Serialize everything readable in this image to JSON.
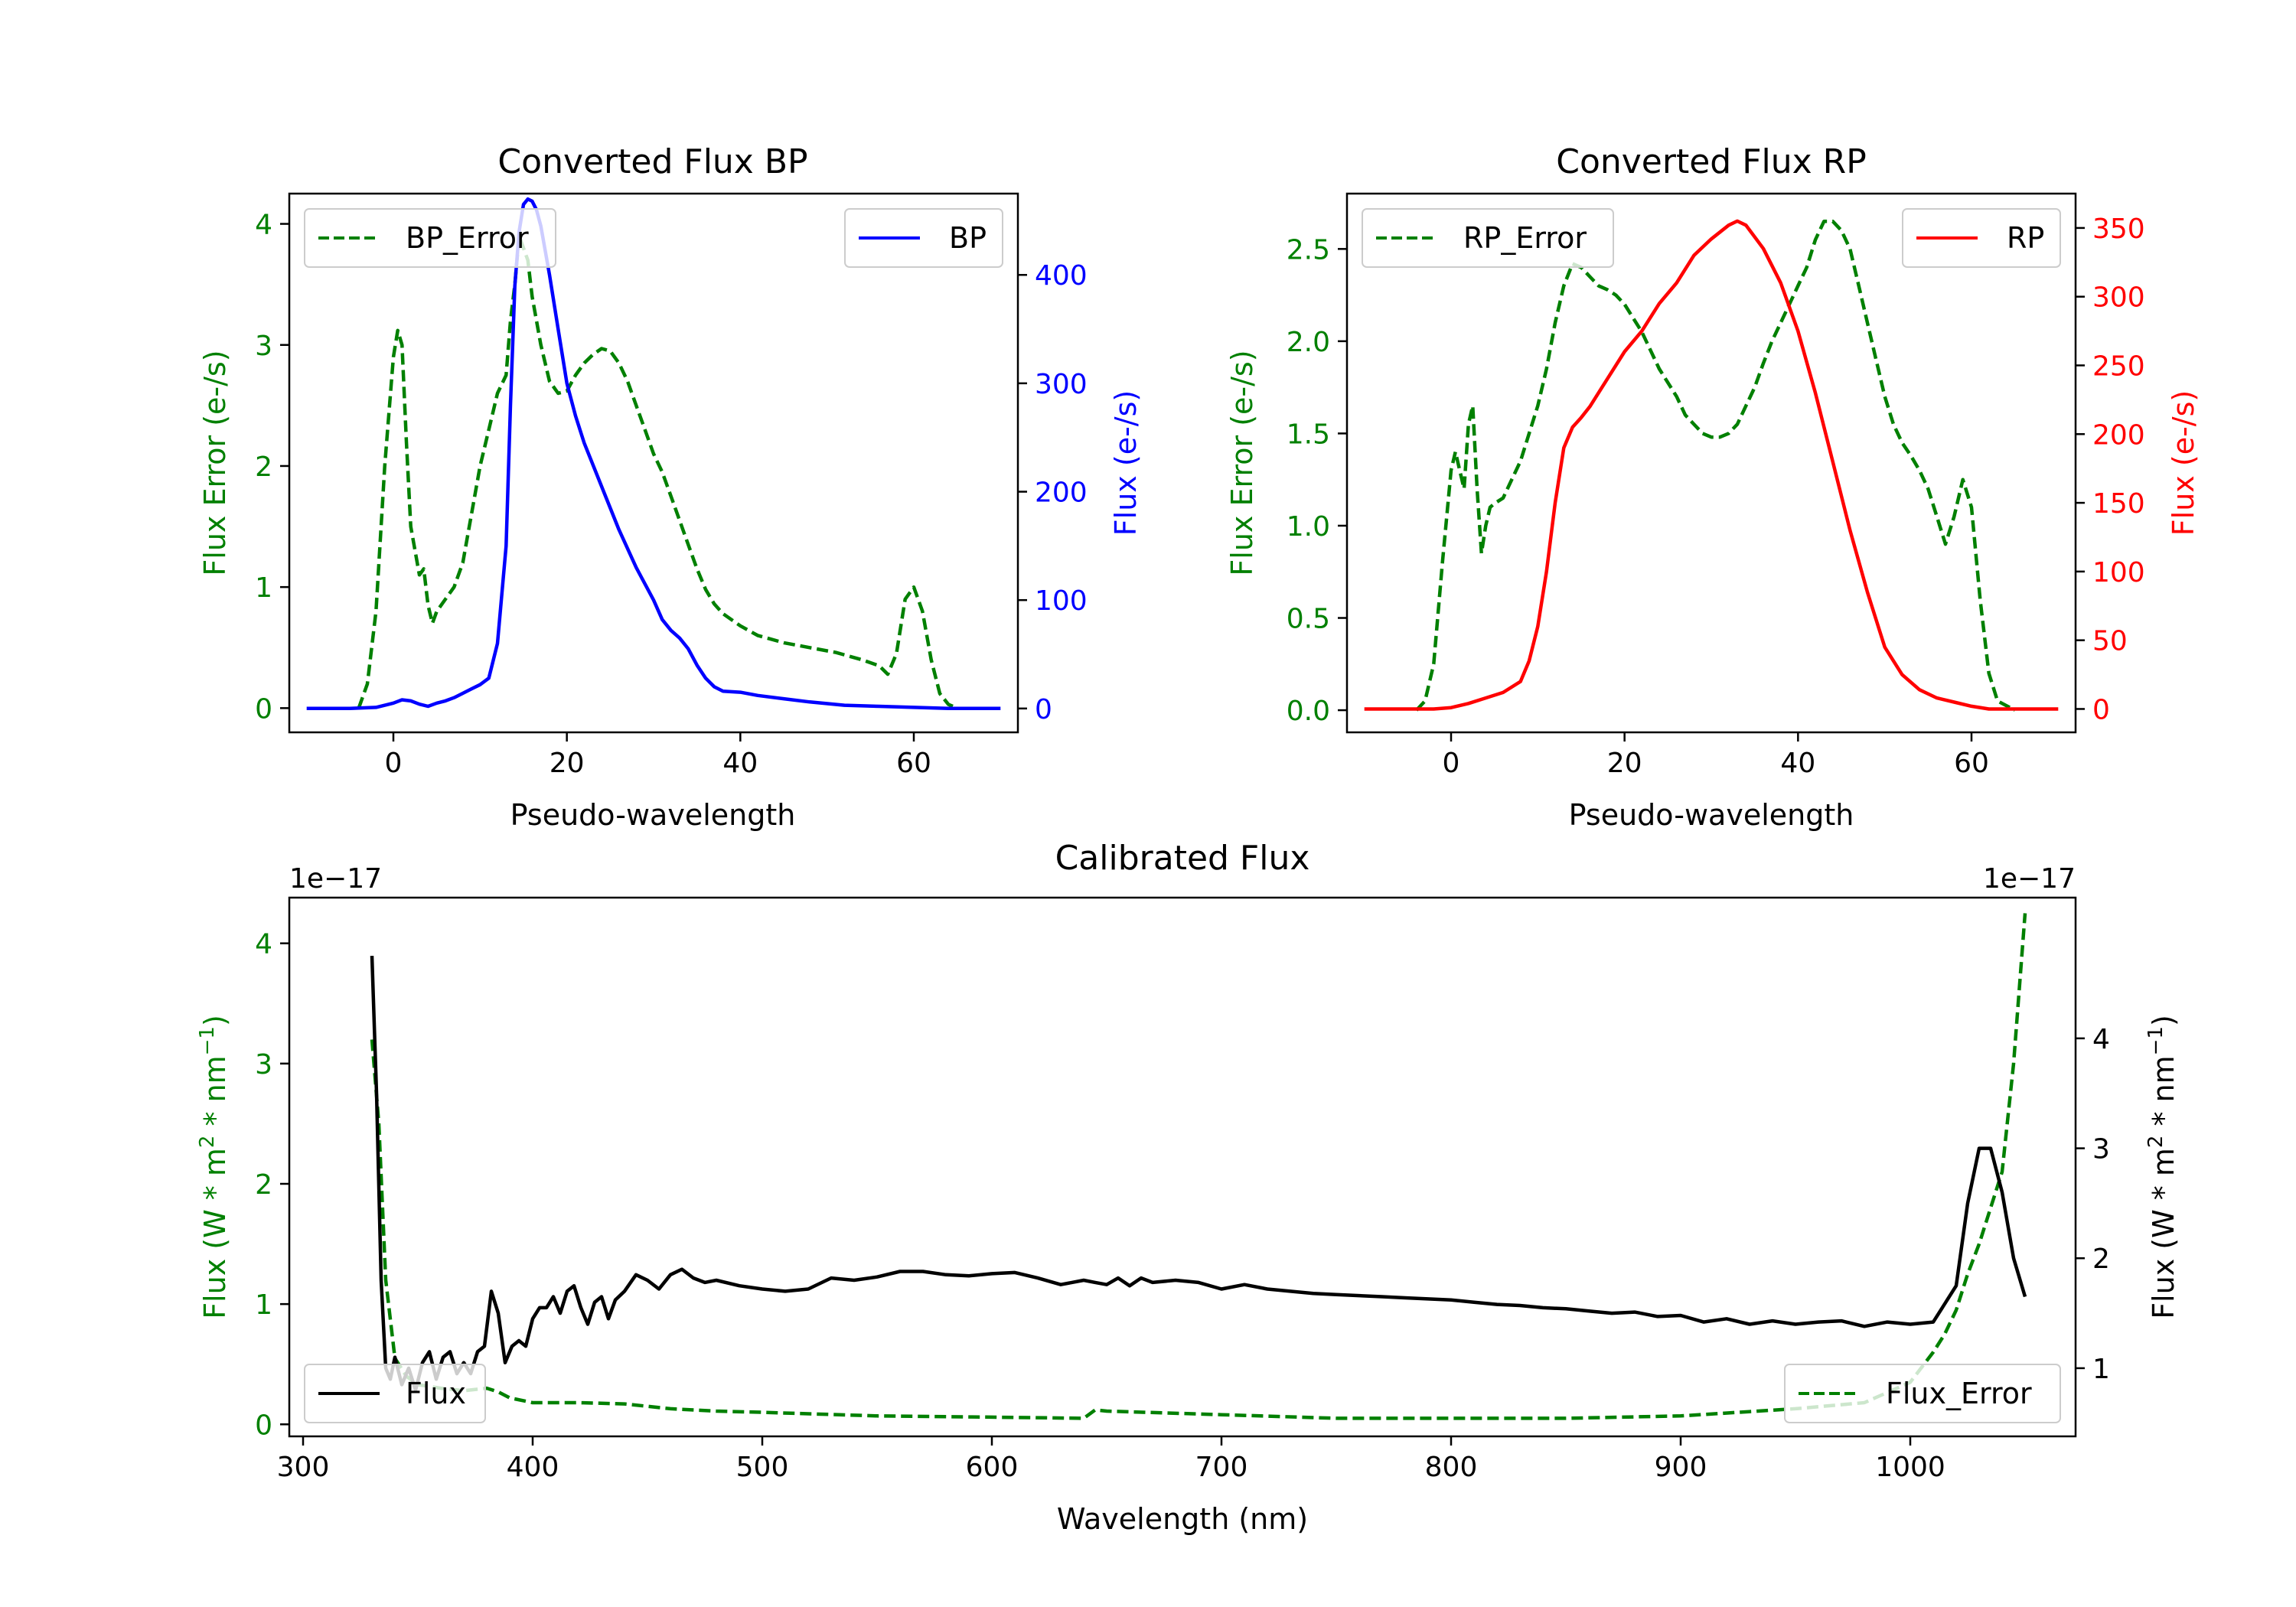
{
  "chart_data": [
    {
      "type": "line",
      "title": "Converted Flux BP",
      "xlabel": "Pseudo-wavelength",
      "ylabel_left": "Flux Error (e-/s)",
      "ylabel_right": "Flux (e-/s)",
      "xlim": [
        -12,
        72
      ],
      "ylim_left": [
        -0.2,
        4.25
      ],
      "ylim_right": [
        -22,
        475
      ],
      "xticks": [
        0,
        20,
        40,
        60
      ],
      "yticks_left": [
        0,
        1,
        2,
        3,
        4
      ],
      "yticks_right": [
        0,
        100,
        200,
        300,
        400
      ],
      "colors": {
        "left": "#008000",
        "right": "#0000ff"
      },
      "series": [
        {
          "name": "BP_Error",
          "axis": "left",
          "style": "dashed",
          "color": "#008000",
          "x": [
            -4,
            -3,
            -2,
            -1,
            0,
            0.5,
            1,
            1.5,
            2,
            3,
            3.5,
            4,
            4.5,
            5,
            6,
            7,
            8,
            9,
            10,
            11,
            12,
            13,
            13.5,
            14,
            14.5,
            15,
            15.5,
            16,
            17,
            18,
            19,
            20,
            21,
            22,
            23,
            24,
            25,
            26,
            27,
            28,
            29,
            30,
            31,
            32,
            33,
            34,
            35,
            36,
            37,
            38,
            40,
            42,
            45,
            48,
            51,
            54,
            56,
            57,
            58,
            59,
            60,
            61,
            62,
            63,
            64,
            65
          ],
          "values": [
            0.0,
            0.2,
            0.8,
            2.0,
            2.9,
            3.12,
            3.0,
            2.2,
            1.5,
            1.1,
            1.15,
            0.85,
            0.7,
            0.8,
            0.9,
            1.0,
            1.2,
            1.6,
            2.0,
            2.3,
            2.6,
            2.75,
            3.2,
            3.5,
            3.9,
            3.8,
            3.7,
            3.4,
            3.0,
            2.7,
            2.6,
            2.62,
            2.75,
            2.85,
            2.92,
            2.97,
            2.95,
            2.85,
            2.7,
            2.5,
            2.3,
            2.1,
            1.95,
            1.75,
            1.55,
            1.35,
            1.15,
            0.98,
            0.86,
            0.78,
            0.68,
            0.6,
            0.54,
            0.5,
            0.46,
            0.4,
            0.35,
            0.28,
            0.45,
            0.9,
            1.0,
            0.8,
            0.4,
            0.12,
            0.03,
            0.0
          ]
        },
        {
          "name": "BP",
          "axis": "right",
          "style": "solid",
          "color": "#0000ff",
          "x": [
            -10,
            -5,
            -2,
            0,
            1,
            2,
            3,
            4,
            5,
            6,
            7,
            8,
            9,
            10,
            11,
            12,
            13,
            13.5,
            14,
            14.5,
            15,
            15.5,
            16,
            16.5,
            17,
            18,
            19,
            20,
            21,
            22,
            24,
            26,
            28,
            30,
            31,
            32,
            33,
            34,
            35,
            36,
            37,
            38,
            40,
            42,
            45,
            48,
            52,
            56,
            60,
            64,
            70
          ],
          "values": [
            0,
            0,
            1,
            5,
            8,
            7,
            4,
            2,
            5,
            7,
            10,
            14,
            18,
            22,
            28,
            60,
            150,
            280,
            390,
            440,
            465,
            470,
            468,
            460,
            445,
            400,
            350,
            300,
            270,
            245,
            205,
            165,
            130,
            100,
            82,
            72,
            65,
            55,
            40,
            28,
            20,
            16,
            15,
            12,
            9,
            6,
            3,
            2,
            1,
            0,
            0
          ]
        }
      ],
      "legend": [
        {
          "label": "BP_Error",
          "position": "upper-left"
        },
        {
          "label": "BP",
          "position": "upper-right"
        }
      ]
    },
    {
      "type": "line",
      "title": "Converted Flux RP",
      "xlabel": "Pseudo-wavelength",
      "ylabel_left": "Flux Error (e-/s)",
      "ylabel_right": "Flux (e-/s)",
      "xlim": [
        -12,
        72
      ],
      "ylim_left": [
        -0.12,
        2.8
      ],
      "ylim_right": [
        -17,
        375
      ],
      "xticks": [
        0,
        20,
        40,
        60
      ],
      "yticks_left": [
        0.0,
        0.5,
        1.0,
        1.5,
        2.0,
        2.5
      ],
      "ytick_labels_left": [
        "0.0",
        "0.5",
        "1.0",
        "1.5",
        "2.0",
        "2.5"
      ],
      "yticks_right": [
        0,
        50,
        100,
        150,
        200,
        250,
        300,
        350
      ],
      "colors": {
        "left": "#008000",
        "right": "#ff0000"
      },
      "series": [
        {
          "name": "RP_Error",
          "axis": "left",
          "style": "dashed",
          "color": "#008000",
          "x": [
            -4,
            -3,
            -2,
            -1,
            0,
            0.5,
            1,
            1.5,
            2,
            2.5,
            3,
            3.5,
            4,
            4.5,
            5,
            6,
            7,
            8,
            9,
            10,
            11,
            12,
            13,
            14,
            15,
            16,
            17,
            18,
            19,
            20,
            22,
            24,
            26,
            27,
            28,
            29,
            30,
            31,
            32,
            33,
            34,
            35,
            36,
            37,
            38,
            39,
            40,
            41,
            42,
            43,
            44,
            45,
            46,
            47,
            48,
            49,
            50,
            51,
            52,
            53,
            54,
            55,
            56,
            57,
            58,
            59,
            60,
            61,
            62,
            63,
            65
          ],
          "values": [
            0.0,
            0.05,
            0.25,
            0.8,
            1.3,
            1.4,
            1.3,
            1.2,
            1.55,
            1.65,
            1.2,
            0.85,
            1.0,
            1.1,
            1.12,
            1.15,
            1.25,
            1.35,
            1.5,
            1.65,
            1.85,
            2.1,
            2.3,
            2.42,
            2.4,
            2.35,
            2.3,
            2.28,
            2.25,
            2.2,
            2.05,
            1.85,
            1.7,
            1.6,
            1.55,
            1.5,
            1.48,
            1.48,
            1.5,
            1.55,
            1.65,
            1.75,
            1.88,
            2.0,
            2.1,
            2.2,
            2.3,
            2.4,
            2.55,
            2.65,
            2.65,
            2.6,
            2.5,
            2.3,
            2.1,
            1.9,
            1.7,
            1.55,
            1.45,
            1.38,
            1.3,
            1.2,
            1.05,
            0.9,
            1.05,
            1.25,
            1.1,
            0.6,
            0.2,
            0.05,
            0.0
          ]
        },
        {
          "name": "RP",
          "axis": "right",
          "style": "solid",
          "color": "#ff0000",
          "x": [
            -10,
            -5,
            -2,
            0,
            2,
            4,
            6,
            8,
            9,
            10,
            11,
            12,
            13,
            14,
            15,
            16,
            18,
            20,
            22,
            24,
            26,
            28,
            30,
            32,
            33,
            34,
            36,
            38,
            40,
            42,
            44,
            46,
            48,
            50,
            52,
            54,
            56,
            58,
            60,
            62,
            65,
            70
          ],
          "values": [
            0,
            0,
            0,
            1,
            4,
            8,
            12,
            20,
            35,
            60,
            100,
            150,
            190,
            205,
            212,
            220,
            240,
            260,
            275,
            295,
            310,
            330,
            342,
            352,
            355,
            352,
            335,
            310,
            275,
            230,
            180,
            130,
            85,
            45,
            25,
            14,
            8,
            5,
            2,
            0,
            0,
            0
          ]
        }
      ],
      "legend": [
        {
          "label": "RP_Error",
          "position": "upper-left"
        },
        {
          "label": "RP",
          "position": "upper-right"
        }
      ]
    },
    {
      "type": "line",
      "title": "Calibrated Flux",
      "xlabel": "Wavelength (nm)",
      "ylabel_left": "Flux (W * m$^2$ * nm$^{-1}$)",
      "ylabel_right": "Flux (W * m$^2$ * nm$^{-1}$)",
      "offset_left": "1e−17",
      "offset_right": "1e−17",
      "xlim": [
        294,
        1072
      ],
      "ylim_left": [
        -0.1,
        4.38
      ],
      "ylim_right": [
        0.38,
        5.28
      ],
      "xticks": [
        300,
        400,
        500,
        600,
        700,
        800,
        900,
        1000
      ],
      "yticks_left": [
        0,
        1,
        2,
        3,
        4
      ],
      "yticks_right": [
        1,
        2,
        3,
        4
      ],
      "colors": {
        "left": "#008000",
        "right": "#000000"
      },
      "series": [
        {
          "name": "Flux_Error",
          "axis": "left",
          "style": "dashed",
          "color": "#008000",
          "x": [
            330,
            333,
            336,
            340,
            345,
            350,
            360,
            370,
            380,
            385,
            390,
            400,
            420,
            440,
            460,
            480,
            500,
            550,
            600,
            640,
            645,
            650,
            700,
            750,
            800,
            850,
            900,
            950,
            980,
            1000,
            1010,
            1015,
            1020,
            1025,
            1030,
            1035,
            1040,
            1045,
            1050
          ],
          "values": [
            3.2,
            2.5,
            1.2,
            0.55,
            0.4,
            0.33,
            0.3,
            0.28,
            0.3,
            0.27,
            0.22,
            0.18,
            0.18,
            0.17,
            0.13,
            0.11,
            0.1,
            0.07,
            0.06,
            0.05,
            0.12,
            0.11,
            0.08,
            0.05,
            0.05,
            0.05,
            0.07,
            0.13,
            0.18,
            0.35,
            0.6,
            0.75,
            0.95,
            1.25,
            1.5,
            1.8,
            2.1,
            3.0,
            4.25
          ]
        },
        {
          "name": "Flux",
          "axis": "right",
          "style": "solid",
          "color": "#000000",
          "x": [
            330,
            332,
            334,
            336,
            338,
            340,
            343,
            346,
            349,
            352,
            355,
            358,
            361,
            364,
            367,
            370,
            373,
            376,
            379,
            382,
            385,
            388,
            391,
            394,
            397,
            400,
            403,
            406,
            409,
            412,
            415,
            418,
            421,
            424,
            427,
            430,
            433,
            436,
            440,
            445,
            450,
            455,
            460,
            465,
            470,
            475,
            480,
            490,
            500,
            510,
            520,
            530,
            540,
            550,
            560,
            570,
            580,
            590,
            600,
            610,
            620,
            630,
            640,
            645,
            650,
            655,
            660,
            665,
            670,
            680,
            690,
            700,
            710,
            720,
            730,
            740,
            750,
            760,
            770,
            780,
            790,
            800,
            810,
            820,
            830,
            840,
            850,
            860,
            870,
            880,
            890,
            900,
            910,
            920,
            930,
            940,
            950,
            960,
            970,
            980,
            990,
            1000,
            1010,
            1020,
            1025,
            1030,
            1035,
            1040,
            1045,
            1050
          ],
          "values": [
            4.75,
            3.5,
            1.8,
            1.0,
            0.9,
            1.1,
            0.85,
            1.0,
            0.8,
            1.05,
            1.15,
            0.9,
            1.1,
            1.15,
            0.95,
            1.05,
            0.95,
            1.15,
            1.2,
            1.7,
            1.5,
            1.05,
            1.2,
            1.25,
            1.2,
            1.45,
            1.55,
            1.55,
            1.65,
            1.5,
            1.7,
            1.75,
            1.55,
            1.4,
            1.6,
            1.65,
            1.45,
            1.62,
            1.7,
            1.85,
            1.8,
            1.72,
            1.85,
            1.9,
            1.82,
            1.78,
            1.8,
            1.75,
            1.72,
            1.7,
            1.72,
            1.82,
            1.8,
            1.83,
            1.88,
            1.88,
            1.85,
            1.84,
            1.86,
            1.87,
            1.82,
            1.76,
            1.8,
            1.78,
            1.76,
            1.82,
            1.75,
            1.82,
            1.78,
            1.8,
            1.78,
            1.72,
            1.76,
            1.72,
            1.7,
            1.68,
            1.67,
            1.66,
            1.65,
            1.64,
            1.63,
            1.62,
            1.6,
            1.58,
            1.57,
            1.55,
            1.54,
            1.52,
            1.5,
            1.51,
            1.47,
            1.48,
            1.42,
            1.45,
            1.4,
            1.43,
            1.4,
            1.42,
            1.43,
            1.38,
            1.42,
            1.4,
            1.42,
            1.75,
            2.5,
            3.0,
            3.0,
            2.6,
            2.0,
            1.65
          ]
        }
      ],
      "legend": [
        {
          "label": "Flux",
          "position": "lower-left"
        },
        {
          "label": "Flux_Error",
          "position": "lower-right"
        }
      ]
    }
  ]
}
